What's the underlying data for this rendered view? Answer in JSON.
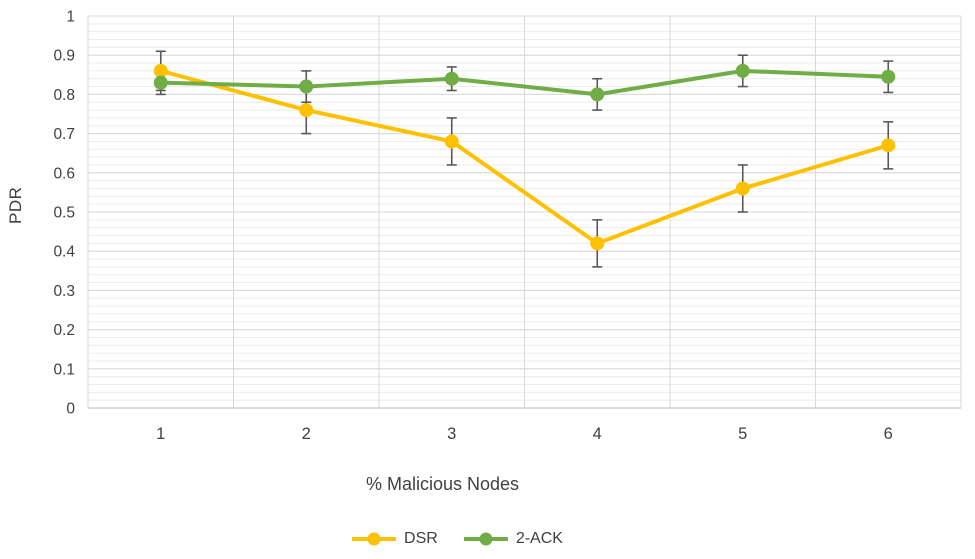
{
  "chart_data": {
    "type": "line",
    "title": "",
    "xlabel": "% Malicious Nodes",
    "ylabel": "PDR",
    "categories": [
      "1",
      "2",
      "3",
      "4",
      "5",
      "6"
    ],
    "ylim": [
      0,
      1
    ],
    "ytick_step": 0.1,
    "minor_tick_step": 0.02,
    "ytick_labels": [
      "0",
      "0.1",
      "0.2",
      "0.3",
      "0.4",
      "0.5",
      "0.6",
      "0.7",
      "0.8",
      "0.9",
      "1"
    ],
    "grid": "horizontal major+minor, vertical major at category boundaries",
    "legend_position": "bottom",
    "axis_text_color": "#404040",
    "gridline_color": "#D9D9D9",
    "minor_gridline_color": "#ECECEC",
    "axis_line_color": "#C6C6C6",
    "error_bar_color": "#595959",
    "series": [
      {
        "name": "DSR",
        "color": "#FFC000",
        "values": [
          0.86,
          0.76,
          0.68,
          0.42,
          0.56,
          0.67
        ],
        "error": [
          0.05,
          0.06,
          0.06,
          0.06,
          0.06,
          0.06
        ]
      },
      {
        "name": "2-ACK",
        "color": "#70AD47",
        "values": [
          0.83,
          0.82,
          0.84,
          0.8,
          0.86,
          0.845
        ],
        "error": [
          0.03,
          0.04,
          0.03,
          0.04,
          0.04,
          0.04
        ]
      }
    ]
  }
}
